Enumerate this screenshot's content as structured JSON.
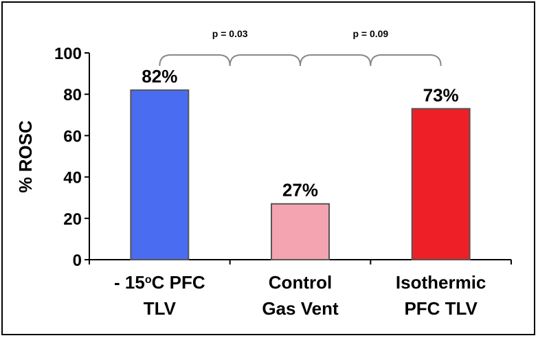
{
  "chart_data": {
    "type": "bar",
    "title": "",
    "ylabel": "% ROSC",
    "xlabel": "",
    "ylim": [
      0,
      100
    ],
    "yticks": [
      0,
      20,
      40,
      60,
      80,
      100
    ],
    "categories": [
      [
        "- 15",
        "o",
        "C PFC",
        "TLV"
      ],
      [
        "Control",
        "",
        "",
        "Gas Vent"
      ],
      [
        "Isothermic",
        "",
        "",
        "PFC TLV"
      ]
    ],
    "values": [
      82,
      27,
      73
    ],
    "data_labels": [
      "82%",
      "27%",
      "73%"
    ],
    "colors": [
      "#4a6cf0",
      "#f4a3b0",
      "#ee1f27"
    ],
    "annotations": [
      {
        "text": "p = 0.03",
        "from": 0,
        "to": 1
      },
      {
        "text": "p = 0.09",
        "from": 1,
        "to": 2
      }
    ],
    "grid": false,
    "legend": "none"
  }
}
